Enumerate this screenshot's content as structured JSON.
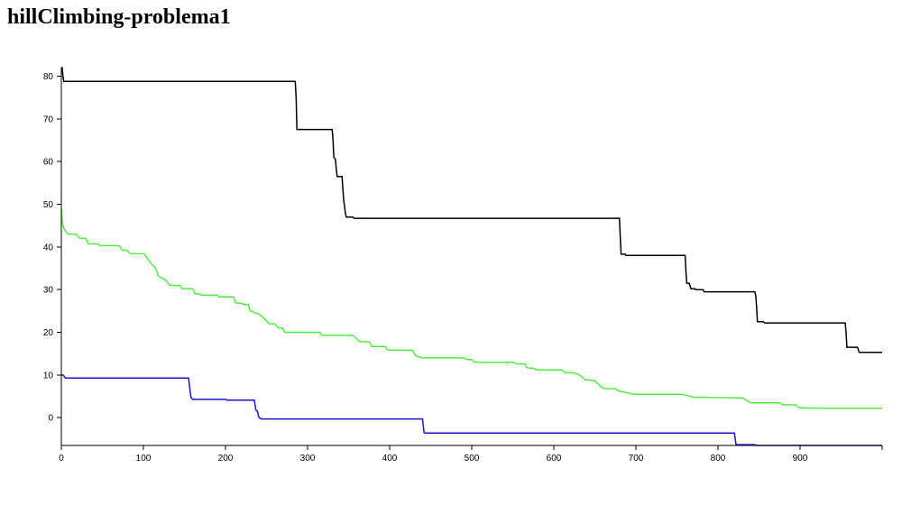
{
  "page": {
    "title": "hillClimbing-problema1"
  },
  "chart_data": {
    "type": "line",
    "title": "",
    "xlabel": "",
    "ylabel": "",
    "xlim": [
      0,
      1000
    ],
    "ylim": [
      -6.5,
      82
    ],
    "x_ticks": [
      0,
      100,
      200,
      300,
      400,
      500,
      600,
      700,
      800,
      900
    ],
    "y_ticks": [
      0,
      10,
      20,
      30,
      40,
      50,
      60,
      70,
      80
    ],
    "grid": false,
    "legend": "none",
    "series": [
      {
        "color": "#000000",
        "points": [
          [
            0,
            82
          ],
          [
            1,
            82
          ],
          [
            2,
            80
          ],
          [
            3,
            78.8
          ],
          [
            5,
            78.8
          ],
          [
            285,
            78.8
          ],
          [
            286,
            75
          ],
          [
            287,
            67.5
          ],
          [
            330,
            67.5
          ],
          [
            331,
            65
          ],
          [
            332,
            61
          ],
          [
            334,
            60.5
          ],
          [
            335,
            58
          ],
          [
            336,
            56.5
          ],
          [
            342,
            56.5
          ],
          [
            344,
            51
          ],
          [
            346,
            48
          ],
          [
            347,
            47
          ],
          [
            355,
            47
          ],
          [
            357,
            46.7
          ],
          [
            680,
            46.7
          ],
          [
            681,
            42
          ],
          [
            682,
            38.3
          ],
          [
            687,
            38.3
          ],
          [
            688,
            38
          ],
          [
            760,
            38
          ],
          [
            761,
            34
          ],
          [
            762,
            31.5
          ],
          [
            765,
            31.5
          ],
          [
            767,
            30.2
          ],
          [
            772,
            30.2
          ],
          [
            773,
            30
          ],
          [
            782,
            30
          ],
          [
            783,
            29.5
          ],
          [
            845,
            29.5
          ],
          [
            846,
            28.5
          ],
          [
            847,
            26
          ],
          [
            848,
            22.5
          ],
          [
            855,
            22.5
          ],
          [
            857,
            22.2
          ],
          [
            955,
            22.2
          ],
          [
            956,
            20
          ],
          [
            957,
            16.5
          ],
          [
            970,
            16.5
          ],
          [
            972,
            15.3
          ],
          [
            1000,
            15.3
          ]
        ]
      },
      {
        "color": "#4cf03c",
        "points": [
          [
            0,
            49
          ],
          [
            1,
            46.5
          ],
          [
            2,
            45
          ],
          [
            4,
            44
          ],
          [
            6,
            43.5
          ],
          [
            8,
            43
          ],
          [
            18,
            43
          ],
          [
            20,
            42.5
          ],
          [
            23,
            42
          ],
          [
            30,
            42
          ],
          [
            32,
            41
          ],
          [
            33,
            40.7
          ],
          [
            45,
            40.7
          ],
          [
            47,
            40.3
          ],
          [
            70,
            40.3
          ],
          [
            72,
            40
          ],
          [
            73,
            39.5
          ],
          [
            75,
            39.2
          ],
          [
            80,
            39.2
          ],
          [
            82,
            38.8
          ],
          [
            84,
            38.4
          ],
          [
            100,
            38.4
          ],
          [
            102,
            38.2
          ],
          [
            104,
            37.5
          ],
          [
            106,
            37
          ],
          [
            108,
            36.5
          ],
          [
            110,
            36
          ],
          [
            113,
            35.5
          ],
          [
            115,
            35
          ],
          [
            117,
            34
          ],
          [
            118,
            33.2
          ],
          [
            120,
            33
          ],
          [
            125,
            32.5
          ],
          [
            128,
            32
          ],
          [
            130,
            31.5
          ],
          [
            132,
            31
          ],
          [
            145,
            31
          ],
          [
            146,
            30.5
          ],
          [
            147,
            30.2
          ],
          [
            160,
            30.2
          ],
          [
            162,
            29.5
          ],
          [
            163,
            29
          ],
          [
            168,
            29
          ],
          [
            170,
            28.7
          ],
          [
            190,
            28.7
          ],
          [
            192,
            28.3
          ],
          [
            210,
            28.3
          ],
          [
            211,
            27.5
          ],
          [
            212,
            27
          ],
          [
            214,
            26.8
          ],
          [
            220,
            26.8
          ],
          [
            222,
            26.5
          ],
          [
            228,
            26.5
          ],
          [
            229,
            25.5
          ],
          [
            230,
            25
          ],
          [
            234,
            24.8
          ],
          [
            236,
            24.5
          ],
          [
            240,
            24.4
          ],
          [
            242,
            24
          ],
          [
            246,
            23.5
          ],
          [
            248,
            23
          ],
          [
            251,
            22.5
          ],
          [
            253,
            22
          ],
          [
            260,
            22
          ],
          [
            262,
            21.5
          ],
          [
            265,
            21
          ],
          [
            270,
            21
          ],
          [
            272,
            20
          ],
          [
            290,
            20
          ],
          [
            315,
            20
          ],
          [
            316,
            19.5
          ],
          [
            318,
            19.3
          ],
          [
            355,
            19.3
          ],
          [
            357,
            19
          ],
          [
            360,
            18.5
          ],
          [
            362,
            18
          ],
          [
            364,
            17.8
          ],
          [
            375,
            17.8
          ],
          [
            377,
            17.3
          ],
          [
            378,
            16.7
          ],
          [
            390,
            16.7
          ],
          [
            395,
            16.7
          ],
          [
            397,
            16
          ],
          [
            400,
            15.8
          ],
          [
            420,
            15.8
          ],
          [
            428,
            15.8
          ],
          [
            430,
            15
          ],
          [
            432,
            14.5
          ],
          [
            435,
            14.3
          ],
          [
            440,
            14
          ],
          [
            460,
            14
          ],
          [
            490,
            14
          ],
          [
            492,
            13.8
          ],
          [
            495,
            13.6
          ],
          [
            500,
            13.6
          ],
          [
            502,
            13.1
          ],
          [
            510,
            13
          ],
          [
            550,
            13
          ],
          [
            552,
            12.8
          ],
          [
            555,
            12.6
          ],
          [
            565,
            12.6
          ],
          [
            567,
            11.8
          ],
          [
            570,
            11.6
          ],
          [
            575,
            11.6
          ],
          [
            580,
            11.2
          ],
          [
            610,
            11.2
          ],
          [
            612,
            10.8
          ],
          [
            615,
            10.5
          ],
          [
            625,
            10.5
          ],
          [
            627,
            10.2
          ],
          [
            630,
            10.2
          ],
          [
            632,
            9.8
          ],
          [
            635,
            9.5
          ],
          [
            638,
            8.9
          ],
          [
            650,
            8.7
          ],
          [
            652,
            8.2
          ],
          [
            655,
            7.8
          ],
          [
            657,
            7.3
          ],
          [
            660,
            7
          ],
          [
            662,
            6.8
          ],
          [
            675,
            6.8
          ],
          [
            677,
            6.5
          ],
          [
            680,
            6.2
          ],
          [
            685,
            6
          ],
          [
            690,
            5.8
          ],
          [
            695,
            5.6
          ],
          [
            700,
            5.5
          ],
          [
            755,
            5.5
          ],
          [
            765,
            5.1
          ],
          [
            770,
            4.8
          ],
          [
            780,
            4.8
          ],
          [
            830,
            4.6
          ],
          [
            833,
            4.3
          ],
          [
            835,
            4
          ],
          [
            840,
            3.5
          ],
          [
            855,
            3.5
          ],
          [
            875,
            3.5
          ],
          [
            877,
            3.2
          ],
          [
            880,
            3
          ],
          [
            895,
            3
          ],
          [
            897,
            2.5
          ],
          [
            900,
            2.3
          ],
          [
            940,
            2.2
          ],
          [
            1000,
            2.2
          ]
        ]
      },
      {
        "color": "#1515d0",
        "points": [
          [
            0,
            10
          ],
          [
            2,
            10
          ],
          [
            4,
            9.6
          ],
          [
            5,
            9.3
          ],
          [
            155,
            9.3
          ],
          [
            156,
            7.5
          ],
          [
            157,
            6
          ],
          [
            158,
            4.7
          ],
          [
            160,
            4.3
          ],
          [
            200,
            4.3
          ],
          [
            202,
            4.1
          ],
          [
            235,
            4.1
          ],
          [
            236,
            3
          ],
          [
            237,
            1.8
          ],
          [
            239,
            1.5
          ],
          [
            240,
            0.5
          ],
          [
            241,
            0
          ],
          [
            244,
            -0.3
          ],
          [
            250,
            -0.3
          ],
          [
            440,
            -0.3
          ],
          [
            441,
            -2
          ],
          [
            442,
            -3.5
          ],
          [
            443,
            -3.6
          ],
          [
            820,
            -3.6
          ],
          [
            821,
            -5
          ],
          [
            822,
            -6.3
          ],
          [
            845,
            -6.3
          ],
          [
            847,
            -6.5
          ],
          [
            1000,
            -6.5
          ]
        ]
      }
    ]
  }
}
